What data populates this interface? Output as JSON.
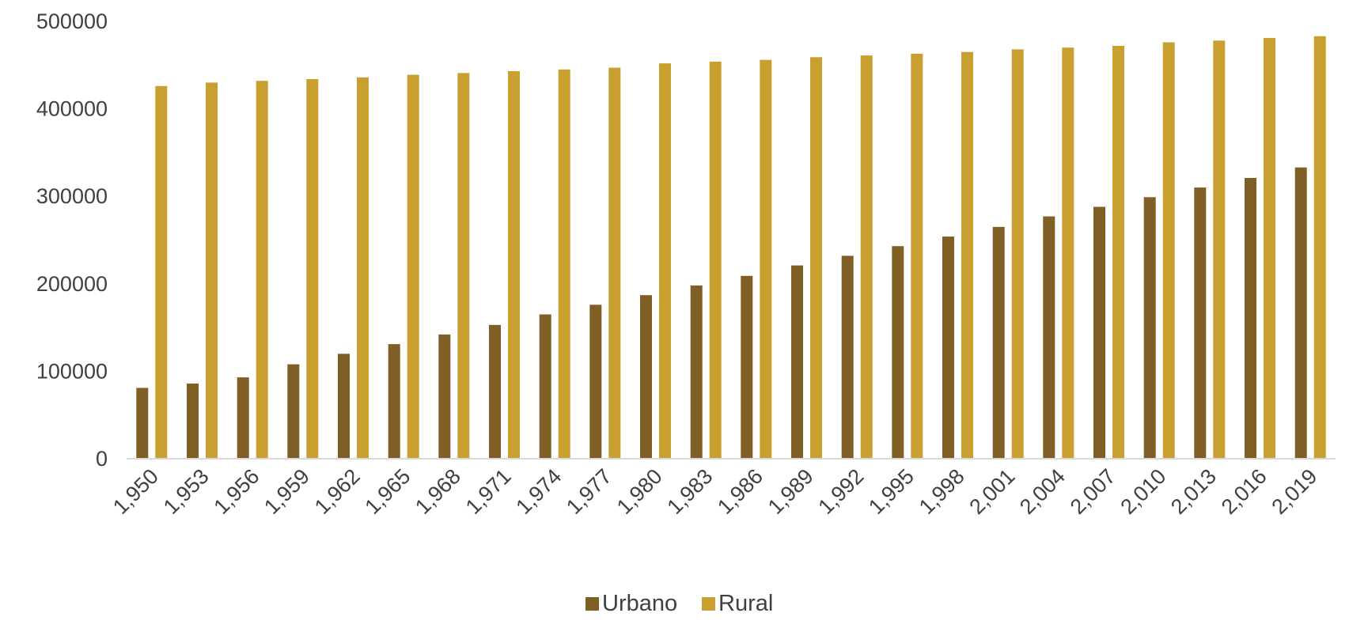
{
  "chart_data": {
    "type": "bar",
    "title": "",
    "xlabel": "",
    "ylabel": "",
    "ylim": [
      0,
      500000
    ],
    "yticks": [
      "0",
      "100000",
      "200000",
      "300000",
      "400000",
      "500000"
    ],
    "ytick_values": [
      0,
      100000,
      200000,
      300000,
      400000,
      500000
    ],
    "grid": false,
    "legend_position": "bottom",
    "categories": [
      "1,950",
      "1,953",
      "1,956",
      "1,959",
      "1,962",
      "1,965",
      "1,968",
      "1,971",
      "1,974",
      "1,977",
      "1,980",
      "1,983",
      "1,986",
      "1,989",
      "1,992",
      "1,995",
      "1,998",
      "2,001",
      "2,004",
      "2,007",
      "2,010",
      "2,013",
      "2,016",
      "2,019"
    ],
    "series": [
      {
        "name": "Urbano",
        "color": "#7f5f25",
        "values": [
          81000,
          86000,
          93000,
          108000,
          120000,
          131000,
          142000,
          153000,
          165000,
          176000,
          187000,
          198000,
          209000,
          221000,
          232000,
          243000,
          254000,
          265000,
          277000,
          288000,
          299000,
          310000,
          321000,
          333000
        ]
      },
      {
        "name": "Rural",
        "color": "#c9a030",
        "values": [
          426000,
          430000,
          432000,
          434000,
          436000,
          439000,
          441000,
          443000,
          445000,
          447000,
          452000,
          454000,
          456000,
          459000,
          461000,
          463000,
          465000,
          468000,
          470000,
          472000,
          476000,
          478000,
          481000,
          483000
        ]
      }
    ]
  }
}
